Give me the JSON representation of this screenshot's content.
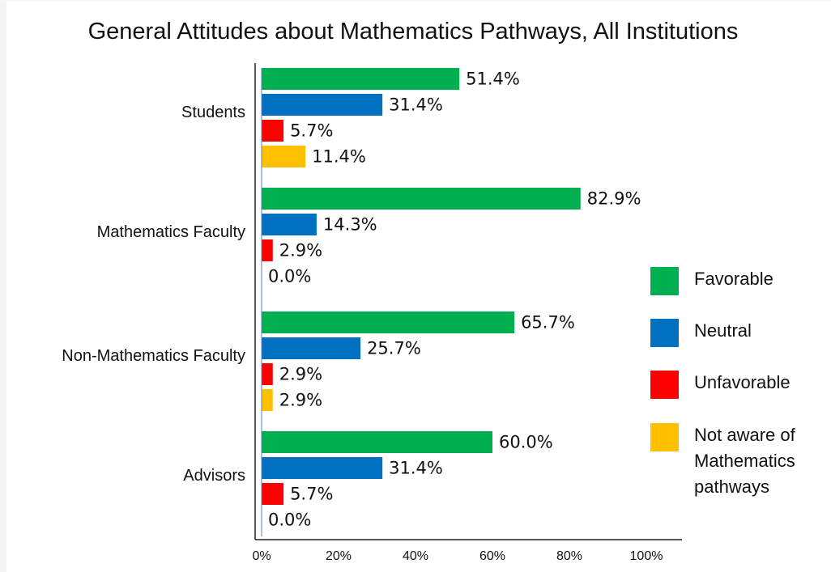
{
  "chart_data": {
    "type": "bar",
    "orientation": "horizontal",
    "title": "General Attitudes about Mathematics  Pathways, All Institutions",
    "xlabel": "",
    "ylabel": "",
    "xlim": [
      0,
      100
    ],
    "x_ticks": [
      "0%",
      "20%",
      "40%",
      "60%",
      "80%",
      "100%"
    ],
    "grid": false,
    "legend_position": "right",
    "categories": [
      "Students",
      "Mathematics  Faculty",
      "Non-Mathematics  Faculty",
      "Advisors"
    ],
    "series": [
      {
        "name": "Favorable",
        "color": "#00b050",
        "values": [
          51.4,
          82.9,
          65.7,
          60.0
        ],
        "labels": [
          "51.4%",
          "82.9%",
          "65.7%",
          "60.0%"
        ]
      },
      {
        "name": "Neutral",
        "color": "#0070c0",
        "values": [
          31.4,
          14.3,
          25.7,
          31.4
        ],
        "labels": [
          "31.4%",
          "14.3%",
          "25.7%",
          "31.4%"
        ]
      },
      {
        "name": "Unfavorable",
        "color": "#ff0000",
        "values": [
          5.7,
          2.9,
          2.9,
          5.7
        ],
        "labels": [
          "5.7%",
          "2.9%",
          "2.9%",
          "5.7%"
        ]
      },
      {
        "name": "Not aware of Mathematics pathways",
        "legend_lines": [
          "Not aware of",
          "Mathematics",
          "pathways"
        ],
        "color": "#ffc000",
        "values": [
          11.4,
          0.0,
          2.9,
          0.0
        ],
        "labels": [
          "11.4%",
          "0.0%",
          "2.9%",
          "0.0%"
        ]
      }
    ]
  }
}
